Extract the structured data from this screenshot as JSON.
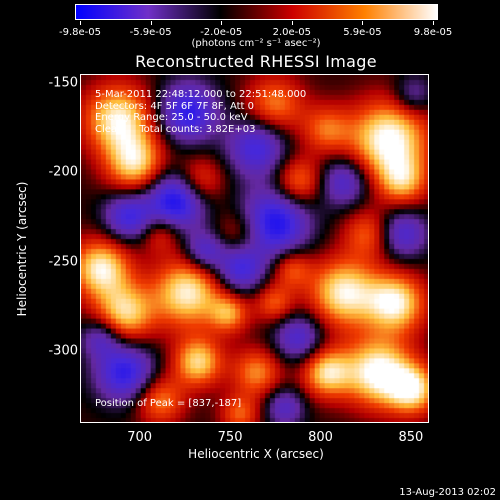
{
  "colorbar": {
    "tick_labels": [
      "-9.8e-05",
      "-5.9e-05",
      "-2.0e-05",
      "2.0e-05",
      "5.9e-05",
      "9.8e-05"
    ],
    "units": "(photons cm⁻² s⁻¹ asec⁻²)",
    "colors": [
      "#0000ff",
      "#7030c8",
      "#000000",
      "#cc0000",
      "#ff8000",
      "#ffffff"
    ]
  },
  "title": "Reconstructed RHESSI Image",
  "info": {
    "time_range": "5-Mar-2011 22:48:12.000 to 22:51:48.000",
    "detectors": "Detectors: 4F 5F 6F 7F 8F, Att 0",
    "energy_range": "Energy Range: 25.0 - 50.0 keV",
    "clean": "Clean     Total counts: 3.82E+03"
  },
  "peak": "Position of Peak = [837,-187]",
  "axes": {
    "xlabel": "Heliocentric X (arcsec)",
    "ylabel": "Heliocentric Y (arcsec)",
    "xticks": [
      "700",
      "750",
      "800",
      "850"
    ],
    "yticks": [
      "-150",
      "-200",
      "-250",
      "-300"
    ]
  },
  "timestamp": "13-Aug-2013 02:02",
  "chart_data": {
    "type": "heatmap",
    "title": "Reconstructed RHESSI Image",
    "xlabel": "Heliocentric X (arcsec)",
    "ylabel": "Heliocentric Y (arcsec)",
    "xlim": [
      667,
      860
    ],
    "ylim": [
      -340,
      -145
    ],
    "xticks": [
      700,
      750,
      800,
      850
    ],
    "yticks": [
      -150,
      -200,
      -250,
      -300
    ],
    "colorbar_range": [
      -9.8e-05,
      9.8e-05
    ],
    "colorbar_ticks": [
      -9.8e-05,
      -5.9e-05,
      -2e-05,
      2e-05,
      5.9e-05,
      9.8e-05
    ],
    "peak_position": [
      837,
      -187
    ]
  }
}
